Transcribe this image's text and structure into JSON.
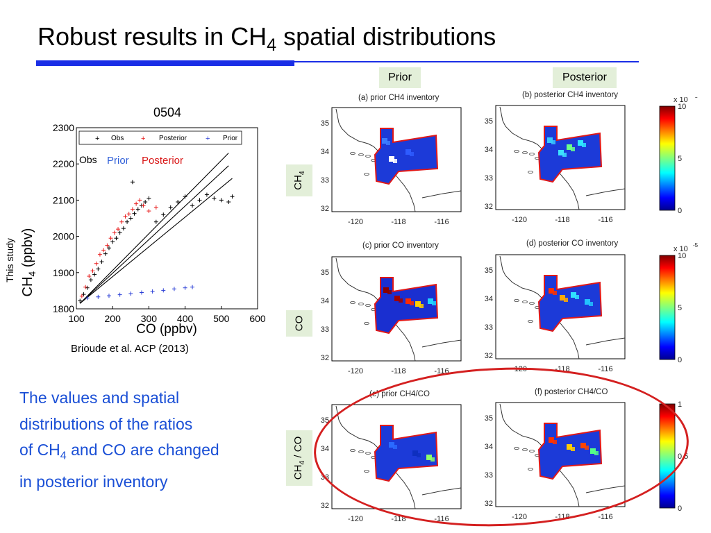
{
  "title": {
    "main": "Robust results in CH",
    "sub": "4",
    "tail": " spatial distributions"
  },
  "column_labels": {
    "prior": "Prior",
    "posterior": "Posterior"
  },
  "row_labels": {
    "ch4": {
      "main": "CH",
      "sub": "4"
    },
    "co": "CO",
    "ratio": {
      "main": "CH",
      "sub": "4",
      "tail": " / CO"
    }
  },
  "scatter": {
    "title": "0504",
    "study_label": "This study",
    "ylabel": {
      "main": "CH",
      "sub": "4",
      "tail": "  (ppbv)"
    },
    "xlabel": "CO (ppbv)",
    "legend_box": [
      "Obs",
      "Posterior",
      "Prior"
    ],
    "inline_legend": {
      "obs": "Obs",
      "prior": "Prior",
      "posterior": "Posterior"
    },
    "colors": {
      "obs": "#000000",
      "posterior": "#e81c1c",
      "prior": "#2b3fd6",
      "posterior_label": "#d91818",
      "prior_label": "#2f5fd8"
    }
  },
  "citation": "Brioude et al. ACP (2013)",
  "ratio_statement": {
    "line1": "The values and spatial",
    "line2": "distributions of the ratios",
    "line3a": "of CH",
    "line3sub": "4",
    "line3b": " and CO are changed",
    "line4": "in posterior inventory"
  },
  "maps": {
    "titles": {
      "a": "(a) prior CH4 inventory",
      "b": "(b) posterior CH4 inventory",
      "c": "(c) prior CO inventory",
      "d": "(d) posterior CO inventory",
      "e": "(e) prior CH4/CO",
      "f": "(f) posterior CH4/CO"
    },
    "x_ticks": [
      "-120",
      "-118",
      "-116"
    ],
    "y_ticks": [
      "35",
      "34",
      "33",
      "32"
    ],
    "colorbars": {
      "top": {
        "scale": "x 10",
        "exp": "-5",
        "ticks": [
          "10",
          "5",
          "0"
        ]
      },
      "mid": {
        "scale": "x 10",
        "exp": "-5",
        "ticks": [
          "10",
          "5",
          "0"
        ]
      },
      "bottom": {
        "ticks": [
          "1",
          "0.5",
          "0"
        ]
      }
    }
  },
  "chart_data": {
    "type": "scatter",
    "title": "0504",
    "xlabel": "CO (ppbv)",
    "ylabel": "CH4 (ppbv)",
    "xlim": [
      100,
      600
    ],
    "ylim": [
      1800,
      2300
    ],
    "x_ticks": [
      100,
      200,
      300,
      400,
      500,
      600
    ],
    "y_ticks": [
      1800,
      1900,
      2000,
      2100,
      2200,
      2300
    ],
    "legend_position": "top",
    "series": [
      {
        "name": "Obs",
        "color": "#000000",
        "x": [
          110,
          120,
          130,
          140,
          150,
          160,
          170,
          180,
          190,
          200,
          210,
          220,
          230,
          240,
          250,
          260,
          270,
          280,
          290,
          300,
          320,
          340,
          360,
          380,
          400,
          420,
          440,
          460,
          480,
          500,
          520,
          530,
          255
        ],
        "y": [
          1822,
          1840,
          1858,
          1880,
          1895,
          1910,
          1930,
          1952,
          1968,
          1985,
          1995,
          2010,
          2022,
          2040,
          2050,
          2063,
          2075,
          2085,
          2095,
          2105,
          2040,
          2060,
          2080,
          2095,
          2110,
          2085,
          2100,
          2115,
          2105,
          2100,
          2095,
          2110,
          2150
        ]
      },
      {
        "name": "Posterior",
        "color": "#e81c1c",
        "x": [
          115,
          125,
          135,
          145,
          155,
          165,
          175,
          185,
          195,
          205,
          215,
          225,
          235,
          245,
          255,
          265,
          275,
          285,
          300,
          320
        ],
        "y": [
          1835,
          1860,
          1890,
          1905,
          1925,
          1950,
          1962,
          1975,
          1995,
          2010,
          2020,
          2040,
          2055,
          2062,
          2075,
          2090,
          2100,
          2085,
          2070,
          2080
        ]
      },
      {
        "name": "Prior",
        "color": "#2b3fd6",
        "x": [
          130,
          160,
          190,
          220,
          250,
          280,
          310,
          340,
          370,
          400,
          420
        ],
        "y": [
          1830,
          1833,
          1836,
          1839,
          1842,
          1845,
          1848,
          1851,
          1855,
          1858,
          1860
        ]
      }
    ],
    "fit_lines_obs": [
      {
        "x": [
          110,
          520
        ],
        "y": [
          1815,
          2230
        ]
      },
      {
        "x": [
          110,
          520
        ],
        "y": [
          1815,
          2195
        ]
      },
      {
        "x": [
          110,
          530
        ],
        "y": [
          1815,
          2160
        ]
      }
    ]
  }
}
